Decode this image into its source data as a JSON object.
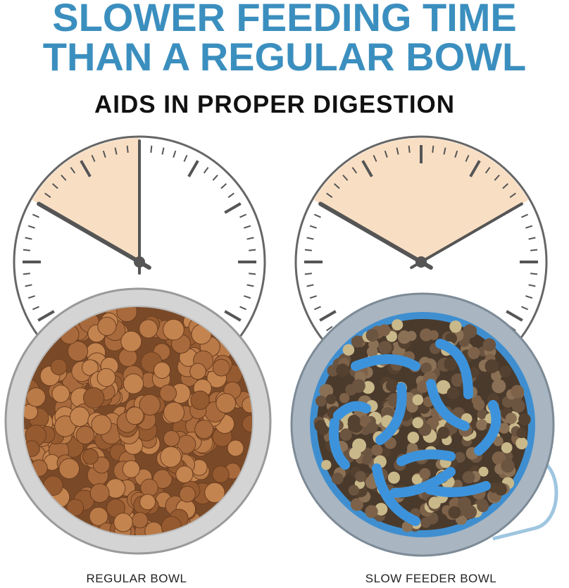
{
  "header": {
    "title_lines": [
      "SLOWER FEEDING TIME",
      "THAN A REGULAR BOWL"
    ],
    "subtitle": "AIDS IN PROPER DIGESTION"
  },
  "labels": [
    "REGULAR BOWL",
    "SLOW FEEDER BOWL"
  ]
}
